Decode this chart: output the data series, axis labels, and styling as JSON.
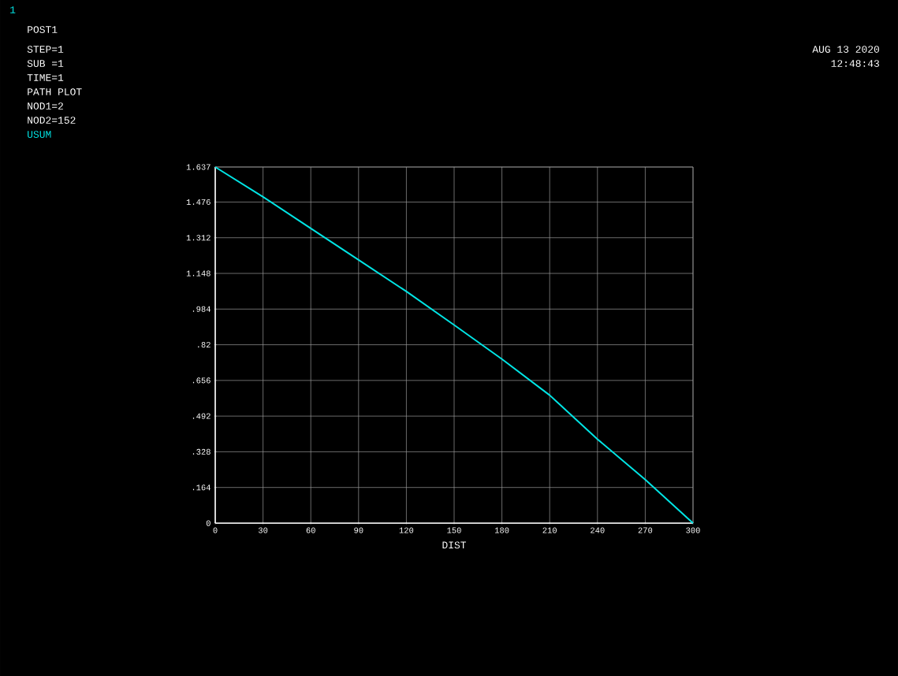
{
  "chart_data": {
    "type": "line",
    "xlabel": "DIST",
    "x": [
      0,
      30,
      60,
      90,
      120,
      150,
      180,
      210,
      240,
      270,
      300
    ],
    "series": [
      {
        "name": "USUM",
        "color": "#00e5e5",
        "values": [
          1.637,
          1.5,
          1.355,
          1.21,
          1.065,
          0.911,
          0.754,
          0.588,
          0.386,
          0.2,
          0
        ]
      }
    ],
    "xlim": [
      0,
      300
    ],
    "xticks": [
      0,
      30,
      60,
      90,
      120,
      150,
      180,
      210,
      240,
      270,
      300
    ],
    "ylim": [
      0,
      1.637
    ],
    "yticks": [
      0,
      {
        "value": 0.164,
        "label": ".164"
      },
      {
        "value": 0.328,
        "label": ".328"
      },
      {
        "value": 0.492,
        "label": ".492"
      },
      {
        "value": 0.656,
        "label": ".656"
      },
      {
        "value": 0.82,
        "label": ".82"
      },
      {
        "value": 0.984,
        "label": ".984"
      },
      1.148,
      1.312,
      1.476,
      1.637
    ],
    "grid": true,
    "legend": false,
    "marker": "none",
    "line_style": "solid",
    "annotations": [
      "1",
      "POST1",
      "STEP=1",
      "SUB =1",
      "TIME=1",
      "PATH PLOT",
      "NOD1=2",
      "NOD2=152",
      "AUG 13 2020",
      "12:48:43"
    ]
  }
}
